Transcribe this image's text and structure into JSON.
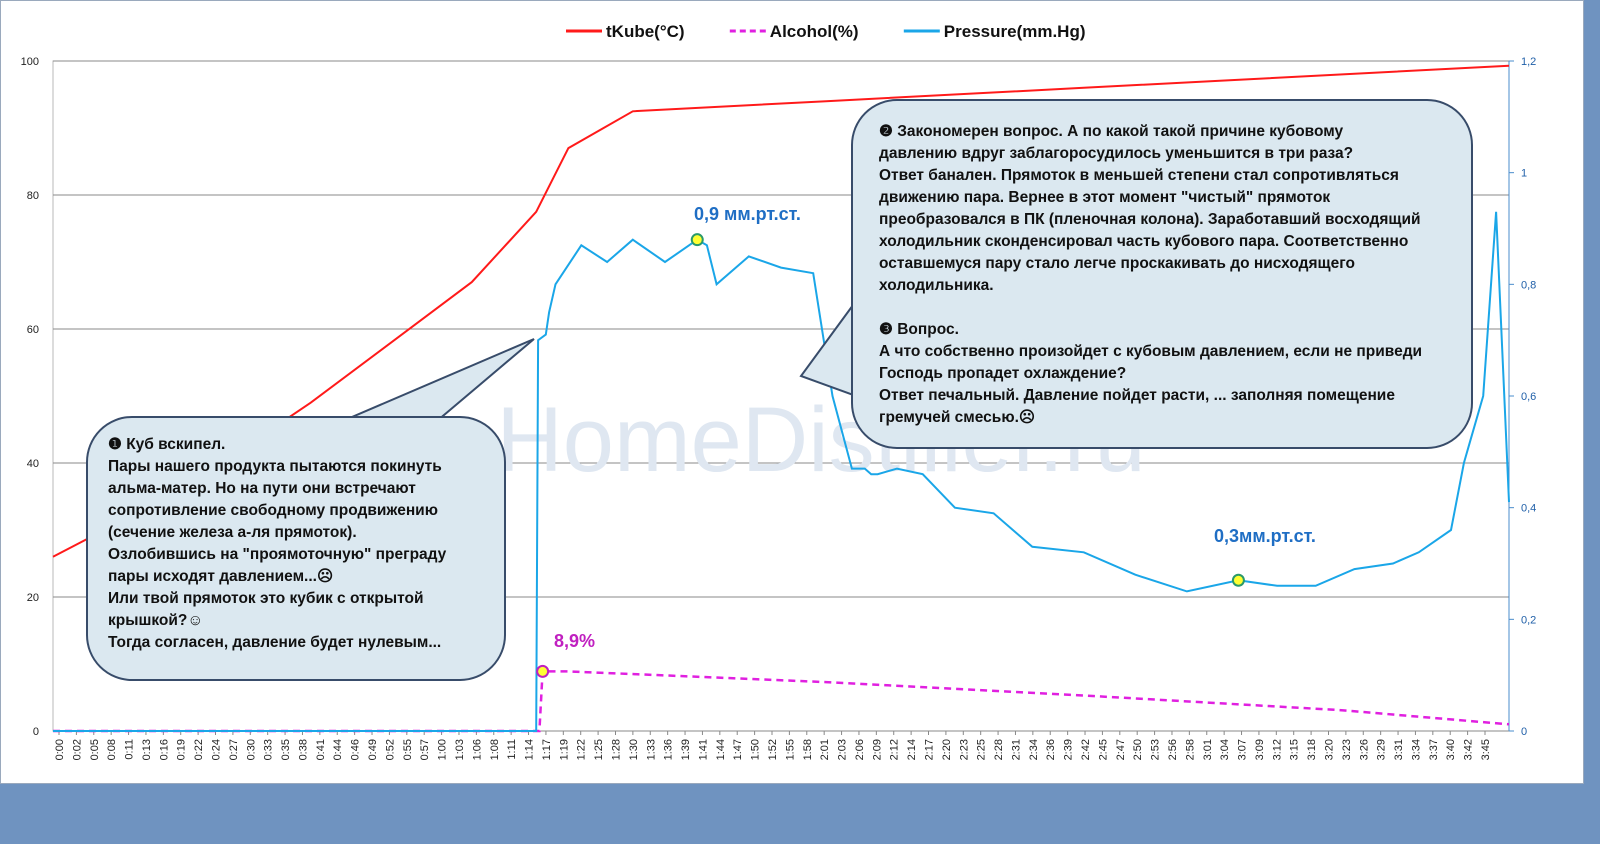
{
  "chart_data": {
    "type": "line",
    "legend": [
      {
        "name": "tKube(°C)",
        "color": "#ff1a1a",
        "style": "solid"
      },
      {
        "name": "Alcohol(%)",
        "color": "#e020e0",
        "style": "dashed"
      },
      {
        "name": "Pressure(mm.Hg)",
        "color": "#1aa6e8",
        "style": "solid"
      }
    ],
    "legend_position": "top-center",
    "y_left": {
      "ylim": [
        0,
        100
      ],
      "ticks": [
        "0",
        "20",
        "40",
        "60",
        "80",
        "100"
      ]
    },
    "y_right": {
      "ylim": [
        0,
        1.2
      ],
      "ticks": [
        "0",
        "0,2",
        "0,4",
        "0,6",
        "0,8",
        "1",
        "1,2"
      ]
    },
    "x_ticks": [
      "0:00",
      "0:02",
      "0:05",
      "0:08",
      "0:11",
      "0:13",
      "0:16",
      "0:19",
      "0:22",
      "0:24",
      "0:27",
      "0:30",
      "0:33",
      "0:35",
      "0:38",
      "0:41",
      "0:44",
      "0:46",
      "0:49",
      "0:52",
      "0:55",
      "0:57",
      "1:00",
      "1:03",
      "1:06",
      "1:08",
      "1:11",
      "1:14",
      "1:17",
      "1:19",
      "1:22",
      "1:25",
      "1:28",
      "1:30",
      "1:33",
      "1:36",
      "1:39",
      "1:41",
      "1:44",
      "1:47",
      "1:50",
      "1:52",
      "1:55",
      "1:58",
      "2:01",
      "2:03",
      "2:06",
      "2:09",
      "2:12",
      "2:14",
      "2:17",
      "2:20",
      "2:23",
      "2:25",
      "2:28",
      "2:31",
      "2:34",
      "2:36",
      "2:39",
      "2:42",
      "2:45",
      "2:47",
      "2:50",
      "2:53",
      "2:56",
      "2:58",
      "3:01",
      "3:04",
      "3:07",
      "3:09",
      "3:12",
      "3:15",
      "3:18",
      "3:20",
      "3:23",
      "3:26",
      "3:29",
      "3:31",
      "3:34",
      "3:37",
      "3:40",
      "3:42",
      "3:45"
    ],
    "grid": true,
    "watermark": "HomeDistiller.ru",
    "series": [
      {
        "name": "tKube(°C)",
        "axis": "left",
        "x_min": [
          0,
          20,
          40,
          65,
          75,
          80,
          90,
          120,
          160,
          180,
          226
        ],
        "values": [
          26,
          36,
          49,
          67,
          77.5,
          87,
          92.5,
          94,
          96,
          97,
          99.3
        ]
      },
      {
        "name": "Alcohol(%)",
        "axis": "left",
        "x_min": [
          0,
          75.5,
          76,
          80,
          120,
          160,
          200,
          226
        ],
        "values": [
          0,
          0,
          8.9,
          8.9,
          7.3,
          5.3,
          3.1,
          1
        ]
      },
      {
        "name": "Pressure(mm.Hg)",
        "axis": "right",
        "x_min": [
          0,
          75,
          75.3,
          76.5,
          77,
          78,
          82,
          86,
          90,
          95,
          100,
          101.5,
          103,
          108,
          113,
          118,
          121,
          124,
          126,
          127,
          128,
          131,
          135,
          140,
          146,
          152,
          160,
          168,
          176,
          184,
          190,
          196,
          202,
          208,
          212,
          217,
          219,
          220,
          222,
          224,
          226
        ],
        "values": [
          0,
          0,
          0.7,
          0.71,
          0.75,
          0.8,
          0.87,
          0.84,
          0.88,
          0.84,
          0.88,
          0.87,
          0.8,
          0.85,
          0.83,
          0.82,
          0.6,
          0.47,
          0.47,
          0.46,
          0.46,
          0.47,
          0.46,
          0.4,
          0.39,
          0.33,
          0.32,
          0.28,
          0.25,
          0.27,
          0.26,
          0.26,
          0.29,
          0.3,
          0.32,
          0.36,
          0.48,
          0.52,
          0.6,
          0.93,
          0.41
        ]
      }
    ],
    "annotations": [
      {
        "text": "0,9 мм.рт.ст.",
        "color": "#1f6ec4"
      },
      {
        "text": "0,3мм.рт.ст.",
        "color": "#1f6ec4"
      },
      {
        "text": "8,9%",
        "color": "#c020c0"
      }
    ]
  },
  "callouts": {
    "c1": {
      "lines": [
        "❶ Куб вскипел.",
        " Пары нашего продукта пытаются покинуть",
        "альма-матер. Но  на пути  они встречают",
        "сопротивление свободному продвижению",
        "(сечение железа а-ля прямоток).",
        "Озлобившись на \"проямоточную\"  преграду",
        "пары исходят давлением...☹",
        "Или твой прямоток это кубик с открытой",
        "крышкой?☺",
        "Тогда согласен, давление будет нулевым..."
      ]
    },
    "c2": {
      "lines": [
        "❷ Закономерен  вопрос.  А по какой такой причине  кубовому",
        "давлению вдруг заблагоросудилось  уменьшится в три раза?",
        "Ответ баналeн. Прямоток  в меньшей степени стал сопротивляться",
        "движению пара. Вернее в этот момент \"чистый\" прямоток",
        "преобразовался в ПК (пленочная колона). Заработавший восходящий",
        "холодильник сконденсировал часть кубового пара. Соответственно",
        "оставшемуся пару стало легче проскакивать  до нисходящего",
        "холодильника.",
        "",
        "❸ Вопрос.",
        "А что собственно  произойдет с кубовым давлением, если не приведи",
        "Господь пропадет  охлаждение?",
        "Ответ печальный. Давление пойдет расти, ... заполняя помещение",
        "гремучей смесью.☹"
      ]
    }
  }
}
